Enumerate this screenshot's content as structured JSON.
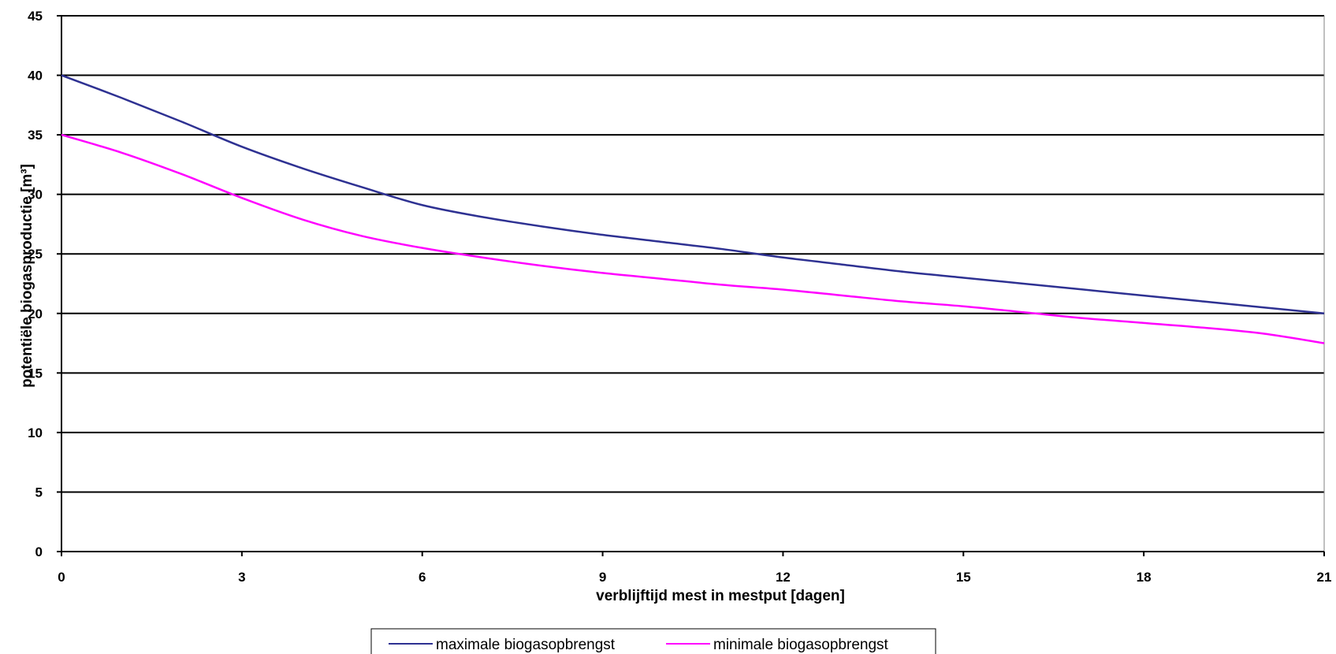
{
  "chart_data": {
    "type": "line",
    "title": "",
    "xlabel": "verblijftijd mest in mestput [dagen]",
    "ylabel": "potentiële biogasproductie [m³]",
    "x_ticks": [
      "0",
      "3",
      "6",
      "9",
      "12",
      "15",
      "18",
      "21"
    ],
    "y_ticks": [
      "0",
      "5",
      "10",
      "15",
      "20",
      "25",
      "30",
      "35",
      "40",
      "45"
    ],
    "xlim": [
      0,
      21
    ],
    "ylim": [
      0,
      45
    ],
    "grid": "horizontal",
    "legend_position": "bottom",
    "series": [
      {
        "name": "maximale biogasopbrengst",
        "color": "#2e3192",
        "x": [
          0,
          1,
          2,
          3,
          4,
          5,
          6,
          7,
          8,
          9,
          10,
          11,
          12,
          13,
          14,
          15,
          16,
          17,
          18,
          19,
          20,
          21
        ],
        "values": [
          40,
          38.1,
          36.1,
          34,
          32.2,
          30.6,
          29.1,
          28.1,
          27.3,
          26.6,
          26,
          25.4,
          24.7,
          24.1,
          23.5,
          23,
          22.5,
          22,
          21.5,
          21,
          20.5,
          20
        ]
      },
      {
        "name": "minimale biogasopbrengst",
        "color": "#ff00ff",
        "x": [
          0,
          1,
          2,
          3,
          4,
          5,
          6,
          7,
          8,
          9,
          10,
          11,
          12,
          13,
          14,
          15,
          16,
          17,
          18,
          19,
          20,
          21
        ],
        "values": [
          35,
          33.5,
          31.7,
          29.7,
          27.9,
          26.5,
          25.5,
          24.7,
          24,
          23.4,
          22.9,
          22.4,
          22,
          21.5,
          21,
          20.6,
          20.1,
          19.6,
          19.2,
          18.8,
          18.3,
          17.5
        ]
      }
    ]
  }
}
